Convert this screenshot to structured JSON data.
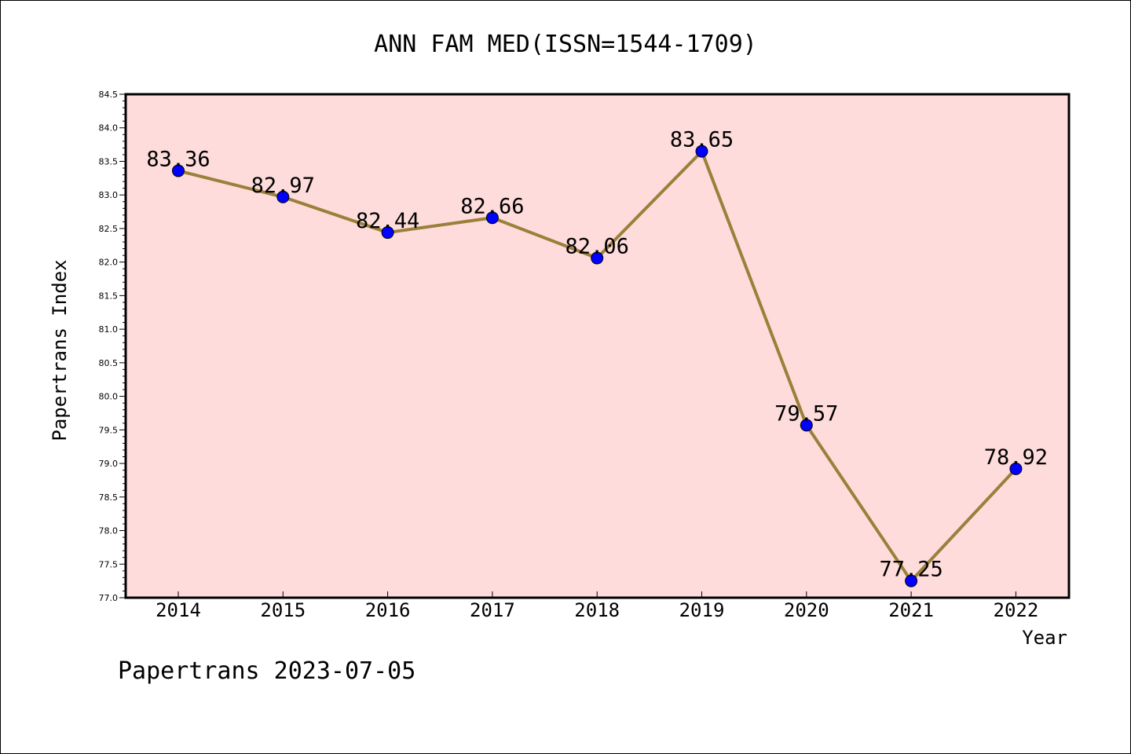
{
  "chart_data": {
    "type": "line",
    "title": "ANN FAM MED(ISSN=1544-1709)",
    "xlabel": "Year",
    "ylabel": "Papertrans Index",
    "footer": "Papertrans 2023-07-05",
    "categories": [
      "2014",
      "2015",
      "2016",
      "2017",
      "2018",
      "2019",
      "2020",
      "2021",
      "2022"
    ],
    "series": [
      {
        "values": [
          83.36,
          82.97,
          82.44,
          82.66,
          82.06,
          83.65,
          79.57,
          77.25,
          78.92
        ],
        "labels": [
          "83.36",
          "82.97",
          "82.44",
          "82.66",
          "82.06",
          "83.65",
          "79.57",
          "77.25",
          "78.92"
        ]
      }
    ],
    "ylim": [
      77.0,
      84.5
    ],
    "yticks": [
      "77.0",
      "77.5",
      "78.0",
      "78.5",
      "79.0",
      "79.5",
      "80.0",
      "80.5",
      "81.0",
      "81.5",
      "82.0",
      "82.5",
      "83.0",
      "83.5",
      "84.0",
      "84.5"
    ],
    "grid": false,
    "colors": {
      "plot_background": "#fddcdb",
      "line": "#9a803a",
      "marker": "#0000ff"
    }
  }
}
